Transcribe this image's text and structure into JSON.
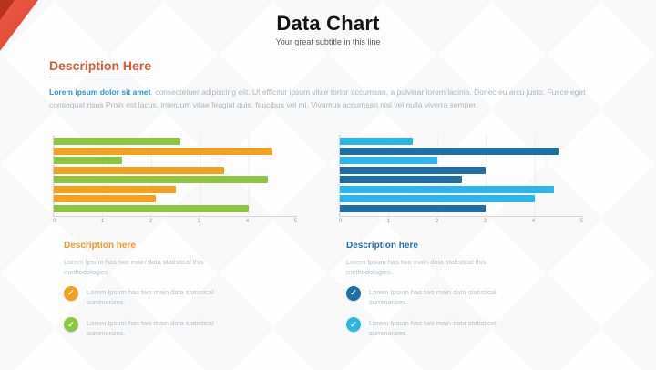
{
  "slide": {
    "title": "Data Chart",
    "subtitle": "Your great subtitle in this line"
  },
  "description": {
    "heading": "Description Here",
    "lead": "Lorem ipsum dolor sit amet",
    "body": ", consectetuer adipiscing elit. Ut efficitur ipsum vitae tortor accumsan, a pulvinar lorem lacinia. Donec eu arcu justo. Fusce eget consequat risus Proin est lacus, interdum vitae feugiat quis, faucibus vel mi.  Vivamus accumsan nisi vel nulla viverra semper."
  },
  "chart_data": [
    {
      "type": "bar",
      "orientation": "horizontal",
      "title": "",
      "xlabel": "",
      "ylabel": "",
      "xlim": [
        0,
        5
      ],
      "ticks": [
        "0",
        "1",
        "2",
        "3",
        "4",
        "5"
      ],
      "grid": true,
      "legend": false,
      "groups": [
        [
          {
            "value": 2.6,
            "color": "#8dc63f"
          },
          {
            "value": 4.5,
            "color": "#f5a01e"
          }
        ],
        [
          {
            "value": 1.4,
            "color": "#8dc63f"
          },
          {
            "value": 3.5,
            "color": "#f5a01e"
          }
        ],
        [
          {
            "value": 4.4,
            "color": "#8dc63f"
          },
          {
            "value": 2.5,
            "color": "#f5a01e"
          }
        ],
        [
          {
            "value": 2.1,
            "color": "#f5a01e"
          },
          {
            "value": 4.0,
            "color": "#8dc63f"
          }
        ]
      ]
    },
    {
      "type": "bar",
      "orientation": "horizontal",
      "title": "",
      "xlabel": "",
      "ylabel": "",
      "xlim": [
        0,
        5
      ],
      "ticks": [
        "0",
        "1",
        "2",
        "3",
        "4",
        "5"
      ],
      "grid": true,
      "legend": false,
      "groups": [
        [
          {
            "value": 1.5,
            "color": "#2bb5e8"
          },
          {
            "value": 4.5,
            "color": "#1d6fa5"
          }
        ],
        [
          {
            "value": 2.0,
            "color": "#2bb5e8"
          },
          {
            "value": 3.0,
            "color": "#1d6fa5"
          }
        ],
        [
          {
            "value": 2.5,
            "color": "#1d6fa5"
          },
          {
            "value": 4.4,
            "color": "#2bb5e8"
          }
        ],
        [
          {
            "value": 4.0,
            "color": "#2bb5e8"
          },
          {
            "value": 3.0,
            "color": "#1d6fa5"
          }
        ]
      ]
    }
  ],
  "panels": [
    {
      "heading": "Description here",
      "heading_color": "#f29a23",
      "text": "Lorem Ipsum has two main data statistical this methodologies .",
      "bullets": [
        {
          "icon": "check-icon",
          "color": "#f5a01e",
          "text": "Lorem Ipsum has two main data statistical summarizes."
        },
        {
          "icon": "check-icon",
          "color": "#8dc63f",
          "text": "Lorem Ipsum has two main data statistical summarizes."
        }
      ]
    },
    {
      "heading": "Description here",
      "heading_color": "#1d71b8",
      "text": "Lorem Ipsum has two main data statistical this methodologies .",
      "bullets": [
        {
          "icon": "check-icon",
          "color": "#1d6fa5",
          "text": "Lorem Ipsum has two main data statistical summarizes."
        },
        {
          "icon": "check-icon",
          "color": "#2bb5e8",
          "text": "Lorem Ipsum has two main data statistical summarizes."
        }
      ]
    }
  ],
  "icon_glyphs": {
    "check": "✓"
  },
  "accent": {
    "corner_color": "#d9402e"
  }
}
